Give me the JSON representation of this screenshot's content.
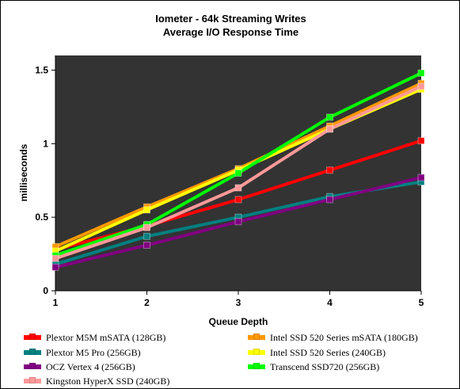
{
  "chart_data": {
    "type": "line",
    "title": "Iometer - 64k  Streaming Writes",
    "subtitle": "Average I/O Response  Time",
    "xlabel": "Queue Depth",
    "ylabel": "milliseconds",
    "x": [
      1,
      2,
      3,
      4,
      5
    ],
    "xticks": [
      "1",
      "2",
      "3",
      "4",
      "5"
    ],
    "ylim": [
      0,
      1.6
    ],
    "yticks": [
      "0",
      "0.5",
      "1",
      "1.5"
    ],
    "grid": false,
    "background": "#333333",
    "legend_position": "bottom",
    "series": [
      {
        "name": "Plextor M5M mSATA (128GB)",
        "color": "#ff0000",
        "values": [
          0.28,
          0.44,
          0.62,
          0.82,
          1.02
        ]
      },
      {
        "name": "Intel SSD 520 Series mSATA (180GB)",
        "color": "#ff9900",
        "values": [
          0.3,
          0.57,
          0.83,
          1.12,
          1.41
        ]
      },
      {
        "name": "Plextor M5 Pro (256GB)",
        "color": "#008080",
        "values": [
          0.18,
          0.37,
          0.5,
          0.64,
          0.74
        ]
      },
      {
        "name": "Intel SSD 520 Series (240GB)",
        "color": "#ffff00",
        "values": [
          0.27,
          0.55,
          0.82,
          1.1,
          1.37
        ]
      },
      {
        "name": "OCZ Vertex 4 (256GB)",
        "color": "#800080",
        "values": [
          0.16,
          0.31,
          0.47,
          0.62,
          0.77
        ]
      },
      {
        "name": "Transcend SSD720 (256GB)",
        "color": "#00ff00",
        "values": [
          0.24,
          0.45,
          0.8,
          1.18,
          1.48
        ]
      },
      {
        "name": "Kingston HyperX SSD (240GB)",
        "color": "#ff9999",
        "values": [
          0.22,
          0.43,
          0.7,
          1.1,
          1.39
        ]
      }
    ]
  }
}
